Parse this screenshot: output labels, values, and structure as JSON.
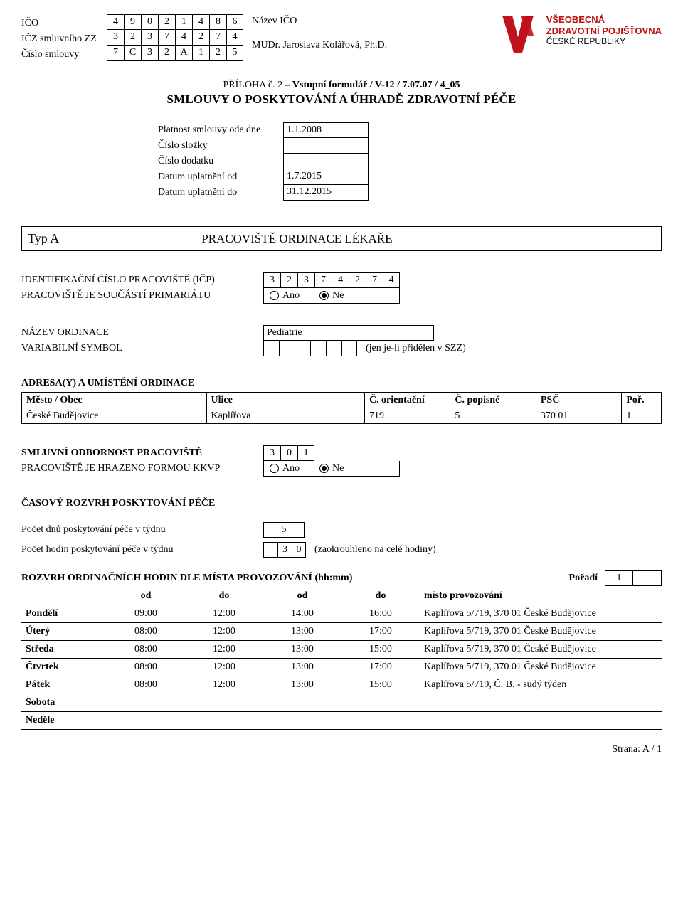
{
  "header": {
    "labels": {
      "ico": "IČO",
      "icz": "IČZ smluvního ZZ",
      "cislo_smlouvy": "Číslo smlouvy"
    },
    "ico": [
      "4",
      "9",
      "0",
      "2",
      "1",
      "4",
      "8",
      "6"
    ],
    "icz": [
      "3",
      "2",
      "3",
      "7",
      "4",
      "2",
      "7",
      "4"
    ],
    "cislo_smlouvy": [
      "7",
      "C",
      "3",
      "2",
      "A",
      "1",
      "2",
      "5"
    ],
    "nazev_ico_label": "Název IČO",
    "nazev_ico_value": "MUDr. Jaroslava Kolářová, Ph.D.",
    "logo": {
      "top": "VŠEOBECNÁ",
      "mid": "ZDRAVOTNÍ POJIŠŤOVNA",
      "bot": "ČESKÉ REPUBLIKY",
      "color": "#c1121c"
    }
  },
  "title": {
    "line1_prefix": "PŘÍLOHA č. 2",
    "line1_rest": " – Vstupní formulář / V-12 / 7.07.07 / 4_05",
    "line2": "SMLOUVY O POSKYTOVÁNÍ A ÚHRADĚ  ZDRAVOTNÍ PÉČE"
  },
  "meta": {
    "rows": [
      {
        "label": "Platnost smlouvy ode dne",
        "value": "1.1.2008"
      },
      {
        "label": "Číslo složky",
        "value": ""
      },
      {
        "label": "Číslo dodatku",
        "value": ""
      },
      {
        "label": "Datum uplatnění od",
        "value": "1.7.2015"
      },
      {
        "label": "Datum uplatnění do",
        "value": "31.12.2015"
      }
    ]
  },
  "typ": {
    "label": "Typ A",
    "title": "PRACOVIŠTĚ ORDINACE LÉKAŘE"
  },
  "ident": {
    "icp_label": "IDENTIFIKAČNÍ ČÍSLO PRACOVIŠTĚ (IČP)",
    "icp": [
      "3",
      "2",
      "3",
      "7",
      "4",
      "2",
      "7",
      "4"
    ],
    "primariat_label": "PRACOVIŠTĚ JE SOUČÁSTÍ  PRIMARIÁTU",
    "ano": "Ano",
    "ne": "Ne",
    "primariat_selected": "ne"
  },
  "ordinace": {
    "nazev_label": "NÁZEV ORDINACE",
    "nazev_value": "Pediatrie",
    "varsym_label": "VARIABILNÍ SYMBOL",
    "varsym_note": "(jen je-li přidělen v SZZ)"
  },
  "address": {
    "title": "ADRESA(Y) A UMÍSTĚNÍ ORDINACE",
    "cols": {
      "mesto": "Město / Obec",
      "ulice": "Ulice",
      "orient": "Č. orientační",
      "popisne": "Č. popisné",
      "psc": "PSČ",
      "por": "Poř."
    },
    "rows": [
      {
        "mesto": "České Budějovice",
        "ulice": "Kaplířova",
        "orient": "719",
        "popisne": "5",
        "psc": "370 01",
        "por": "1"
      }
    ]
  },
  "odbornost": {
    "label": "SMLUVNÍ ODBORNOST PRACOVIŠTĚ",
    "code": [
      "3",
      "0",
      "1"
    ],
    "kkvp_label": "PRACOVIŠTĚ JE HRAZENO FORMOU KKVP",
    "ano": "Ano",
    "ne": "Ne",
    "kkvp_selected": "ne"
  },
  "rozvrh": {
    "title": "ČASOVÝ ROZVRH POSKYTOVÁNÍ PÉČE",
    "dny_label": "Počet dnů poskytování péče v týdnu",
    "dny_value": "5",
    "hodiny_label": "Počet hodin poskytování péče v týdnu",
    "hodiny_value": [
      "",
      "3",
      "0"
    ],
    "hodiny_note": "(zaokrouhleno na celé hodiny)"
  },
  "schedule": {
    "heading": "ROZVRH ORDINAČNÍCH HODIN DLE MÍSTA PROVOZOVÁNÍ (hh:mm)",
    "poradi_label": "Pořadí",
    "poradi_value": "1",
    "head": {
      "od": "od",
      "do": "do",
      "misto": "místo provozování"
    },
    "rows": [
      {
        "day": "Pondělí",
        "od1": "09:00",
        "do1": "12:00",
        "od2": "14:00",
        "do2": "16:00",
        "place": "Kaplířova 5/719, 370 01 České Budějovice"
      },
      {
        "day": "Úterý",
        "od1": "08:00",
        "do1": "12:00",
        "od2": "13:00",
        "do2": "17:00",
        "place": "Kaplířova 5/719, 370 01 České Budějovice"
      },
      {
        "day": "Středa",
        "od1": "08:00",
        "do1": "12:00",
        "od2": "13:00",
        "do2": "15:00",
        "place": "Kaplířova 5/719, 370 01 České Budějovice"
      },
      {
        "day": "Čtvrtek",
        "od1": "08:00",
        "do1": "12:00",
        "od2": "13:00",
        "do2": "17:00",
        "place": "Kaplířova 5/719, 370 01 České Budějovice"
      },
      {
        "day": "Pátek",
        "od1": "08:00",
        "do1": "12:00",
        "od2": "13:00",
        "do2": "15:00",
        "place": "Kaplířova 5/719, Č. B. - sudý týden"
      },
      {
        "day": "Sobota",
        "od1": "",
        "do1": "",
        "od2": "",
        "do2": "",
        "place": ""
      },
      {
        "day": "Neděle",
        "od1": "",
        "do1": "",
        "od2": "",
        "do2": "",
        "place": ""
      }
    ]
  },
  "footer": "Strana: A / 1"
}
